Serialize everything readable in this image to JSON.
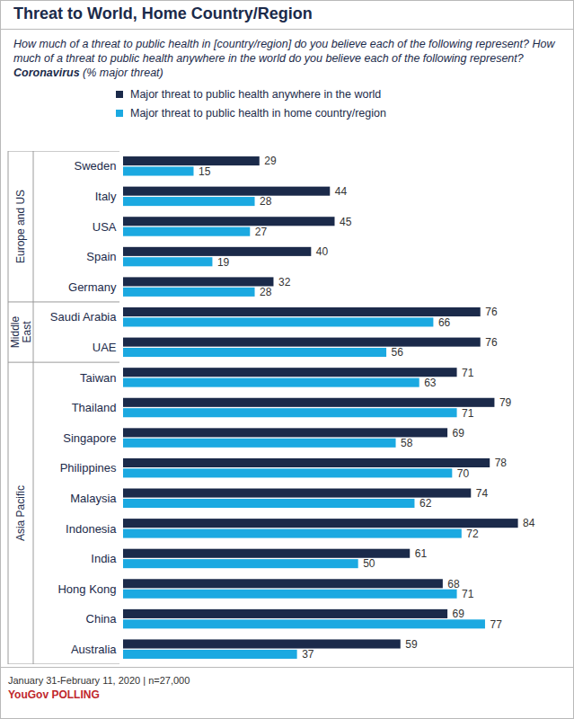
{
  "chart_data": {
    "type": "bar",
    "orientation": "horizontal",
    "title": "Threat to World, Home Country/Region",
    "subtitle": [
      "How much of a threat to public health in [country/region] do you believe each of the following represent? How much of a threat to public health anywhere in the world do you believe each of the following represent? ",
      "Coronavirus",
      " (% major threat)"
    ],
    "categories": [
      "Sweden",
      "Italy",
      "USA",
      "Spain",
      "Germany",
      "Saudi Arabia",
      "UAE",
      "Taiwan",
      "Thailand",
      "Singapore",
      "Philippines",
      "Malaysia",
      "Indonesia",
      "India",
      "Hong Kong",
      "China",
      "Australia"
    ],
    "category_groups": [
      "Europe and US",
      "Europe and US",
      "Europe and US",
      "Europe and US",
      "Europe and US",
      "Middle East",
      "Middle East",
      "Asia Pacific",
      "Asia Pacific",
      "Asia Pacific",
      "Asia Pacific",
      "Asia Pacific",
      "Asia Pacific",
      "Asia Pacific",
      "Asia Pacific",
      "Asia Pacific",
      "Asia Pacific"
    ],
    "series": [
      {
        "name": "Major threat to public health anywhere in the world",
        "color": "#1b2a4a",
        "values": [
          29,
          44,
          45,
          40,
          32,
          76,
          76,
          71,
          79,
          69,
          78,
          74,
          84,
          61,
          68,
          69,
          59
        ]
      },
      {
        "name": "Major threat to public health in home country/region",
        "color": "#1ba9e1",
        "values": [
          15,
          28,
          27,
          19,
          28,
          66,
          56,
          63,
          71,
          58,
          70,
          62,
          72,
          50,
          71,
          77,
          37
        ]
      }
    ],
    "xlim": [
      0,
      90
    ],
    "data_labels": true,
    "tick_labels": "y",
    "grid": false,
    "legend": "top",
    "source": "January 31-February 11, 2020 | n=27,000",
    "brand": "YouGov POLLING"
  }
}
